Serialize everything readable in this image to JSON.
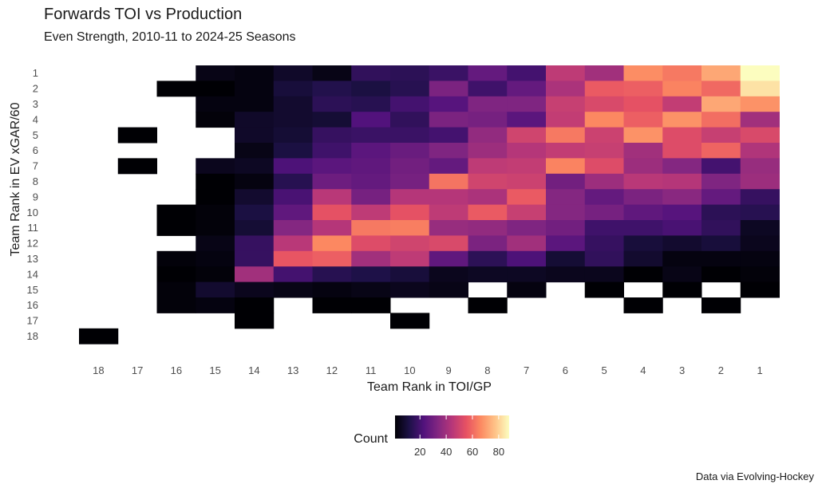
{
  "chart_data": {
    "type": "heatmap",
    "title": "Forwards TOI vs Production",
    "subtitle": "Even Strength, 2010-11 to 2024-25 Seasons",
    "xlabel": "Team Rank in TOI/GP",
    "ylabel": "Team Rank in EV xGAR/60",
    "caption": "Data via Evolving-Hockey",
    "x_categories": [
      "18",
      "17",
      "16",
      "15",
      "14",
      "13",
      "12",
      "11",
      "10",
      "9",
      "8",
      "7",
      "6",
      "5",
      "4",
      "3",
      "2",
      "1"
    ],
    "y_categories": [
      "1",
      "2",
      "3",
      "4",
      "5",
      "6",
      "7",
      "8",
      "9",
      "10",
      "11",
      "12",
      "13",
      "14",
      "15",
      "16",
      "17",
      "18"
    ],
    "legend": {
      "title": "Count",
      "ticks": [
        20,
        40,
        60,
        80
      ],
      "range": [
        1,
        88
      ]
    },
    "colors": {
      "scale": [
        "#000004",
        "#1d1147",
        "#51127c",
        "#822681",
        "#b73779",
        "#e75263",
        "#fc8961",
        "#fec287",
        "#fcfdbf"
      ],
      "background": "#ffffff"
    },
    "cells": [
      {
        "x": "15",
        "y": "1",
        "count": 4
      },
      {
        "x": "14",
        "y": "1",
        "count": 3
      },
      {
        "x": "13",
        "y": "1",
        "count": 7
      },
      {
        "x": "12",
        "y": "1",
        "count": 4
      },
      {
        "x": "11",
        "y": "1",
        "count": 16
      },
      {
        "x": "10",
        "y": "1",
        "count": 15
      },
      {
        "x": "9",
        "y": "1",
        "count": 18
      },
      {
        "x": "8",
        "y": "1",
        "count": 27
      },
      {
        "x": "7",
        "y": "1",
        "count": 20
      },
      {
        "x": "6",
        "y": "1",
        "count": 46
      },
      {
        "x": "5",
        "y": "1",
        "count": 40
      },
      {
        "x": "4",
        "y": "1",
        "count": 67
      },
      {
        "x": "3",
        "y": "1",
        "count": 63
      },
      {
        "x": "2",
        "y": "1",
        "count": 72
      },
      {
        "x": "1",
        "y": "1",
        "count": 88
      },
      {
        "x": "16",
        "y": "2",
        "count": 1
      },
      {
        "x": "15",
        "y": "2",
        "count": 1
      },
      {
        "x": "14",
        "y": "2",
        "count": 3
      },
      {
        "x": "13",
        "y": "2",
        "count": 10
      },
      {
        "x": "12",
        "y": "2",
        "count": 13
      },
      {
        "x": "11",
        "y": "2",
        "count": 11
      },
      {
        "x": "10",
        "y": "2",
        "count": 14
      },
      {
        "x": "9",
        "y": "2",
        "count": 32
      },
      {
        "x": "8",
        "y": "2",
        "count": 19
      },
      {
        "x": "7",
        "y": "2",
        "count": 27
      },
      {
        "x": "6",
        "y": "2",
        "count": 42
      },
      {
        "x": "5",
        "y": "2",
        "count": 57
      },
      {
        "x": "4",
        "y": "2",
        "count": 58
      },
      {
        "x": "3",
        "y": "2",
        "count": 65
      },
      {
        "x": "2",
        "y": "2",
        "count": 60
      },
      {
        "x": "1",
        "y": "2",
        "count": 83
      },
      {
        "x": "15",
        "y": "3",
        "count": 3
      },
      {
        "x": "14",
        "y": "3",
        "count": 3
      },
      {
        "x": "13",
        "y": "3",
        "count": 8
      },
      {
        "x": "12",
        "y": "3",
        "count": 15
      },
      {
        "x": "11",
        "y": "3",
        "count": 14
      },
      {
        "x": "10",
        "y": "3",
        "count": 20
      },
      {
        "x": "9",
        "y": "3",
        "count": 24
      },
      {
        "x": "8",
        "y": "3",
        "count": 33
      },
      {
        "x": "7",
        "y": "3",
        "count": 33
      },
      {
        "x": "6",
        "y": "3",
        "count": 48
      },
      {
        "x": "5",
        "y": "3",
        "count": 52
      },
      {
        "x": "4",
        "y": "3",
        "count": 55
      },
      {
        "x": "3",
        "y": "3",
        "count": 47
      },
      {
        "x": "2",
        "y": "3",
        "count": 72
      },
      {
        "x": "1",
        "y": "3",
        "count": 68
      },
      {
        "x": "15",
        "y": "4",
        "count": 2
      },
      {
        "x": "14",
        "y": "4",
        "count": 7
      },
      {
        "x": "13",
        "y": "4",
        "count": 8
      },
      {
        "x": "12",
        "y": "4",
        "count": 9
      },
      {
        "x": "11",
        "y": "4",
        "count": 23
      },
      {
        "x": "10",
        "y": "4",
        "count": 16
      },
      {
        "x": "9",
        "y": "4",
        "count": 32
      },
      {
        "x": "8",
        "y": "4",
        "count": 31
      },
      {
        "x": "7",
        "y": "4",
        "count": 25
      },
      {
        "x": "6",
        "y": "4",
        "count": 47
      },
      {
        "x": "5",
        "y": "4",
        "count": 66
      },
      {
        "x": "4",
        "y": "4",
        "count": 58
      },
      {
        "x": "3",
        "y": "4",
        "count": 68
      },
      {
        "x": "2",
        "y": "4",
        "count": 61
      },
      {
        "x": "1",
        "y": "4",
        "count": 40
      },
      {
        "x": "17",
        "y": "5",
        "count": 1
      },
      {
        "x": "14",
        "y": "5",
        "count": 7
      },
      {
        "x": "13",
        "y": "5",
        "count": 9
      },
      {
        "x": "12",
        "y": "5",
        "count": 17
      },
      {
        "x": "11",
        "y": "5",
        "count": 18
      },
      {
        "x": "10",
        "y": "5",
        "count": 18
      },
      {
        "x": "9",
        "y": "5",
        "count": 20
      },
      {
        "x": "8",
        "y": "5",
        "count": 37
      },
      {
        "x": "7",
        "y": "5",
        "count": 50
      },
      {
        "x": "6",
        "y": "5",
        "count": 63
      },
      {
        "x": "5",
        "y": "5",
        "count": 49
      },
      {
        "x": "4",
        "y": "5",
        "count": 68
      },
      {
        "x": "3",
        "y": "5",
        "count": 53
      },
      {
        "x": "2",
        "y": "5",
        "count": 48
      },
      {
        "x": "1",
        "y": "5",
        "count": 52
      },
      {
        "x": "14",
        "y": "6",
        "count": 4
      },
      {
        "x": "13",
        "y": "6",
        "count": 11
      },
      {
        "x": "12",
        "y": "6",
        "count": 19
      },
      {
        "x": "11",
        "y": "6",
        "count": 25
      },
      {
        "x": "10",
        "y": "6",
        "count": 28
      },
      {
        "x": "9",
        "y": "6",
        "count": 33
      },
      {
        "x": "8",
        "y": "6",
        "count": 39
      },
      {
        "x": "7",
        "y": "6",
        "count": 44
      },
      {
        "x": "6",
        "y": "6",
        "count": 47
      },
      {
        "x": "5",
        "y": "6",
        "count": 48
      },
      {
        "x": "4",
        "y": "6",
        "count": 40
      },
      {
        "x": "3",
        "y": "6",
        "count": 53
      },
      {
        "x": "2",
        "y": "6",
        "count": 59
      },
      {
        "x": "1",
        "y": "6",
        "count": 43
      },
      {
        "x": "17",
        "y": "7",
        "count": 1
      },
      {
        "x": "15",
        "y": "7",
        "count": 5
      },
      {
        "x": "14",
        "y": "7",
        "count": 6
      },
      {
        "x": "13",
        "y": "7",
        "count": 22
      },
      {
        "x": "12",
        "y": "7",
        "count": 25
      },
      {
        "x": "11",
        "y": "7",
        "count": 26
      },
      {
        "x": "10",
        "y": "7",
        "count": 30
      },
      {
        "x": "9",
        "y": "7",
        "count": 27
      },
      {
        "x": "8",
        "y": "7",
        "count": 46
      },
      {
        "x": "7",
        "y": "7",
        "count": 47
      },
      {
        "x": "6",
        "y": "7",
        "count": 65
      },
      {
        "x": "5",
        "y": "7",
        "count": 53
      },
      {
        "x": "4",
        "y": "7",
        "count": 39
      },
      {
        "x": "3",
        "y": "7",
        "count": 34
      },
      {
        "x": "2",
        "y": "7",
        "count": 20
      },
      {
        "x": "1",
        "y": "7",
        "count": 38
      },
      {
        "x": "15",
        "y": "8",
        "count": 1
      },
      {
        "x": "14",
        "y": "8",
        "count": 3
      },
      {
        "x": "13",
        "y": "8",
        "count": 14
      },
      {
        "x": "12",
        "y": "8",
        "count": 29
      },
      {
        "x": "11",
        "y": "8",
        "count": 27
      },
      {
        "x": "10",
        "y": "8",
        "count": 31
      },
      {
        "x": "9",
        "y": "8",
        "count": 62
      },
      {
        "x": "8",
        "y": "8",
        "count": 50
      },
      {
        "x": "7",
        "y": "8",
        "count": 49
      },
      {
        "x": "6",
        "y": "8",
        "count": 30
      },
      {
        "x": "5",
        "y": "8",
        "count": 39
      },
      {
        "x": "4",
        "y": "8",
        "count": 45
      },
      {
        "x": "3",
        "y": "8",
        "count": 44
      },
      {
        "x": "2",
        "y": "8",
        "count": 33
      },
      {
        "x": "1",
        "y": "8",
        "count": 39
      },
      {
        "x": "15",
        "y": "9",
        "count": 1
      },
      {
        "x": "14",
        "y": "9",
        "count": 8
      },
      {
        "x": "13",
        "y": "9",
        "count": 21
      },
      {
        "x": "12",
        "y": "9",
        "count": 45
      },
      {
        "x": "11",
        "y": "9",
        "count": 31
      },
      {
        "x": "10",
        "y": "9",
        "count": 44
      },
      {
        "x": "9",
        "y": "9",
        "count": 44
      },
      {
        "x": "8",
        "y": "9",
        "count": 42
      },
      {
        "x": "7",
        "y": "9",
        "count": 57
      },
      {
        "x": "6",
        "y": "9",
        "count": 34
      },
      {
        "x": "5",
        "y": "9",
        "count": 27
      },
      {
        "x": "4",
        "y": "9",
        "count": 32
      },
      {
        "x": "3",
        "y": "9",
        "count": 35
      },
      {
        "x": "2",
        "y": "9",
        "count": 27
      },
      {
        "x": "1",
        "y": "9",
        "count": 17
      },
      {
        "x": "16",
        "y": "10",
        "count": 1
      },
      {
        "x": "15",
        "y": "10",
        "count": 2
      },
      {
        "x": "14",
        "y": "10",
        "count": 11
      },
      {
        "x": "13",
        "y": "10",
        "count": 26
      },
      {
        "x": "12",
        "y": "10",
        "count": 55
      },
      {
        "x": "11",
        "y": "10",
        "count": 46
      },
      {
        "x": "10",
        "y": "10",
        "count": 55
      },
      {
        "x": "9",
        "y": "10",
        "count": 46
      },
      {
        "x": "8",
        "y": "10",
        "count": 57
      },
      {
        "x": "7",
        "y": "10",
        "count": 48
      },
      {
        "x": "6",
        "y": "10",
        "count": 34
      },
      {
        "x": "5",
        "y": "10",
        "count": 31
      },
      {
        "x": "4",
        "y": "10",
        "count": 26
      },
      {
        "x": "3",
        "y": "10",
        "count": 24
      },
      {
        "x": "2",
        "y": "10",
        "count": 15
      },
      {
        "x": "1",
        "y": "10",
        "count": 14
      },
      {
        "x": "16",
        "y": "11",
        "count": 1
      },
      {
        "x": "15",
        "y": "11",
        "count": 2
      },
      {
        "x": "14",
        "y": "11",
        "count": 9
      },
      {
        "x": "13",
        "y": "11",
        "count": 34
      },
      {
        "x": "12",
        "y": "11",
        "count": 44
      },
      {
        "x": "11",
        "y": "11",
        "count": 63
      },
      {
        "x": "10",
        "y": "11",
        "count": 64
      },
      {
        "x": "9",
        "y": "11",
        "count": 38
      },
      {
        "x": "8",
        "y": "11",
        "count": 37
      },
      {
        "x": "7",
        "y": "11",
        "count": 33
      },
      {
        "x": "6",
        "y": "11",
        "count": 30
      },
      {
        "x": "5",
        "y": "11",
        "count": 19
      },
      {
        "x": "4",
        "y": "11",
        "count": 19
      },
      {
        "x": "3",
        "y": "11",
        "count": 21
      },
      {
        "x": "2",
        "y": "11",
        "count": 16
      },
      {
        "x": "1",
        "y": "11",
        "count": 6
      },
      {
        "x": "15",
        "y": "12",
        "count": 4
      },
      {
        "x": "14",
        "y": "12",
        "count": 17
      },
      {
        "x": "13",
        "y": "12",
        "count": 45
      },
      {
        "x": "12",
        "y": "12",
        "count": 66
      },
      {
        "x": "11",
        "y": "12",
        "count": 53
      },
      {
        "x": "10",
        "y": "12",
        "count": 50
      },
      {
        "x": "9",
        "y": "12",
        "count": 52
      },
      {
        "x": "8",
        "y": "12",
        "count": 32
      },
      {
        "x": "7",
        "y": "12",
        "count": 40
      },
      {
        "x": "6",
        "y": "12",
        "count": 25
      },
      {
        "x": "5",
        "y": "12",
        "count": 17
      },
      {
        "x": "4",
        "y": "12",
        "count": 10
      },
      {
        "x": "3",
        "y": "12",
        "count": 8
      },
      {
        "x": "2",
        "y": "12",
        "count": 10
      },
      {
        "x": "1",
        "y": "12",
        "count": 5
      },
      {
        "x": "16",
        "y": "13",
        "count": 2
      },
      {
        "x": "15",
        "y": "13",
        "count": 3
      },
      {
        "x": "14",
        "y": "13",
        "count": 17
      },
      {
        "x": "13",
        "y": "13",
        "count": 56
      },
      {
        "x": "12",
        "y": "13",
        "count": 58
      },
      {
        "x": "11",
        "y": "13",
        "count": 40
      },
      {
        "x": "10",
        "y": "13",
        "count": 46
      },
      {
        "x": "9",
        "y": "13",
        "count": 26
      },
      {
        "x": "8",
        "y": "13",
        "count": 15
      },
      {
        "x": "7",
        "y": "13",
        "count": 22
      },
      {
        "x": "6",
        "y": "13",
        "count": 9
      },
      {
        "x": "5",
        "y": "13",
        "count": 16
      },
      {
        "x": "4",
        "y": "13",
        "count": 8
      },
      {
        "x": "3",
        "y": "13",
        "count": 3
      },
      {
        "x": "2",
        "y": "13",
        "count": 3
      },
      {
        "x": "1",
        "y": "13",
        "count": 3
      },
      {
        "x": "16",
        "y": "14",
        "count": 1
      },
      {
        "x": "15",
        "y": "14",
        "count": 2
      },
      {
        "x": "14",
        "y": "14",
        "count": 40
      },
      {
        "x": "13",
        "y": "14",
        "count": 20
      },
      {
        "x": "12",
        "y": "14",
        "count": 14
      },
      {
        "x": "11",
        "y": "14",
        "count": 12
      },
      {
        "x": "10",
        "y": "14",
        "count": 10
      },
      {
        "x": "9",
        "y": "14",
        "count": 5
      },
      {
        "x": "8",
        "y": "14",
        "count": 6
      },
      {
        "x": "7",
        "y": "14",
        "count": 6
      },
      {
        "x": "6",
        "y": "14",
        "count": 5
      },
      {
        "x": "5",
        "y": "14",
        "count": 5
      },
      {
        "x": "4",
        "y": "14",
        "count": 1
      },
      {
        "x": "3",
        "y": "14",
        "count": 4
      },
      {
        "x": "2",
        "y": "14",
        "count": 1
      },
      {
        "x": "1",
        "y": "14",
        "count": 2
      },
      {
        "x": "16",
        "y": "15",
        "count": 2
      },
      {
        "x": "15",
        "y": "15",
        "count": 8
      },
      {
        "x": "14",
        "y": "15",
        "count": 5
      },
      {
        "x": "13",
        "y": "15",
        "count": 4
      },
      {
        "x": "12",
        "y": "15",
        "count": 3
      },
      {
        "x": "11",
        "y": "15",
        "count": 4
      },
      {
        "x": "10",
        "y": "15",
        "count": 5
      },
      {
        "x": "9",
        "y": "15",
        "count": 4
      },
      {
        "x": "7",
        "y": "15",
        "count": 3
      },
      {
        "x": "5",
        "y": "15",
        "count": 1
      },
      {
        "x": "3",
        "y": "15",
        "count": 1
      },
      {
        "x": "1",
        "y": "15",
        "count": 1
      },
      {
        "x": "16",
        "y": "16",
        "count": 2
      },
      {
        "x": "15",
        "y": "16",
        "count": 3
      },
      {
        "x": "14",
        "y": "16",
        "count": 1
      },
      {
        "x": "12",
        "y": "16",
        "count": 1
      },
      {
        "x": "11",
        "y": "16",
        "count": 1
      },
      {
        "x": "8",
        "y": "16",
        "count": 1
      },
      {
        "x": "4",
        "y": "16",
        "count": 1
      },
      {
        "x": "2",
        "y": "16",
        "count": 1
      },
      {
        "x": "14",
        "y": "17",
        "count": 1
      },
      {
        "x": "10",
        "y": "17",
        "count": 1
      },
      {
        "x": "18",
        "y": "18",
        "count": 1
      }
    ]
  }
}
